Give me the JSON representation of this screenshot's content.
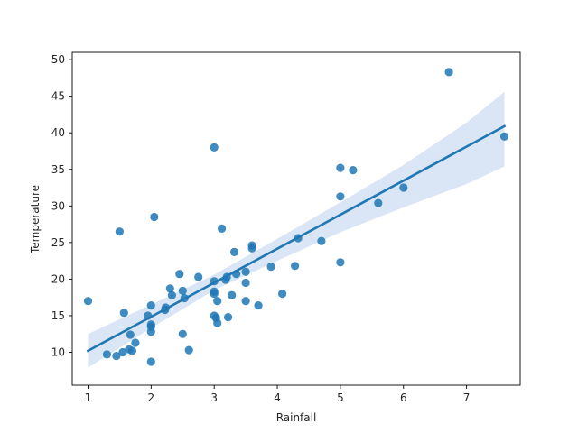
{
  "chart_data": {
    "type": "scatter",
    "xlabel": "Rainfall",
    "ylabel": "Temperature",
    "xlim": [
      0.75,
      7.85
    ],
    "ylim": [
      5.5,
      51
    ],
    "x_ticks": [
      1,
      2,
      3,
      4,
      5,
      6,
      7
    ],
    "y_ticks": [
      10,
      15,
      20,
      25,
      30,
      35,
      40,
      45,
      50
    ],
    "grid": false,
    "legend": "none",
    "colors": {
      "points": "#1f77b4",
      "line": "#1f77b4",
      "band": "#aec7e8"
    },
    "points": [
      {
        "x": 1.0,
        "y": 17.0
      },
      {
        "x": 1.3,
        "y": 9.7
      },
      {
        "x": 1.45,
        "y": 9.5
      },
      {
        "x": 1.5,
        "y": 26.5
      },
      {
        "x": 1.55,
        "y": 10.0
      },
      {
        "x": 1.57,
        "y": 15.4
      },
      {
        "x": 1.65,
        "y": 10.4
      },
      {
        "x": 1.67,
        "y": 12.4
      },
      {
        "x": 1.7,
        "y": 10.2
      },
      {
        "x": 1.75,
        "y": 11.3
      },
      {
        "x": 1.95,
        "y": 15.0
      },
      {
        "x": 2.0,
        "y": 8.7
      },
      {
        "x": 2.0,
        "y": 12.8
      },
      {
        "x": 2.0,
        "y": 13.5
      },
      {
        "x": 2.0,
        "y": 13.8
      },
      {
        "x": 2.0,
        "y": 16.4
      },
      {
        "x": 2.05,
        "y": 28.5
      },
      {
        "x": 2.22,
        "y": 15.8
      },
      {
        "x": 2.23,
        "y": 16.1
      },
      {
        "x": 2.3,
        "y": 18.7
      },
      {
        "x": 2.33,
        "y": 17.8
      },
      {
        "x": 2.45,
        "y": 20.7
      },
      {
        "x": 2.5,
        "y": 12.5
      },
      {
        "x": 2.5,
        "y": 18.4
      },
      {
        "x": 2.53,
        "y": 17.4
      },
      {
        "x": 2.6,
        "y": 10.3
      },
      {
        "x": 2.75,
        "y": 20.3
      },
      {
        "x": 3.0,
        "y": 38.0
      },
      {
        "x": 3.0,
        "y": 19.7
      },
      {
        "x": 3.0,
        "y": 18.3
      },
      {
        "x": 3.0,
        "y": 18.0
      },
      {
        "x": 3.0,
        "y": 15.0
      },
      {
        "x": 3.03,
        "y": 14.7
      },
      {
        "x": 3.05,
        "y": 14.0
      },
      {
        "x": 3.05,
        "y": 17.0
      },
      {
        "x": 3.12,
        "y": 26.9
      },
      {
        "x": 3.18,
        "y": 19.9
      },
      {
        "x": 3.2,
        "y": 20.3
      },
      {
        "x": 3.22,
        "y": 14.8
      },
      {
        "x": 3.28,
        "y": 17.8
      },
      {
        "x": 3.32,
        "y": 23.7
      },
      {
        "x": 3.35,
        "y": 20.7
      },
      {
        "x": 3.5,
        "y": 21.0
      },
      {
        "x": 3.5,
        "y": 19.5
      },
      {
        "x": 3.5,
        "y": 17.0
      },
      {
        "x": 3.6,
        "y": 24.2
      },
      {
        "x": 3.6,
        "y": 24.6
      },
      {
        "x": 3.7,
        "y": 16.4
      },
      {
        "x": 3.9,
        "y": 21.7
      },
      {
        "x": 4.08,
        "y": 18.0
      },
      {
        "x": 4.28,
        "y": 21.8
      },
      {
        "x": 4.33,
        "y": 25.6
      },
      {
        "x": 4.7,
        "y": 25.2
      },
      {
        "x": 5.0,
        "y": 35.2
      },
      {
        "x": 5.0,
        "y": 31.3
      },
      {
        "x": 5.0,
        "y": 22.3
      },
      {
        "x": 5.2,
        "y": 34.9
      },
      {
        "x": 5.6,
        "y": 30.4
      },
      {
        "x": 6.0,
        "y": 32.5
      },
      {
        "x": 6.72,
        "y": 48.3
      },
      {
        "x": 7.6,
        "y": 39.5
      }
    ],
    "regression": {
      "x": [
        1.0,
        7.6
      ],
      "y": [
        10.2,
        40.9
      ]
    },
    "confidence_band": {
      "x": [
        1.0,
        2.0,
        3.0,
        4.0,
        5.0,
        6.0,
        7.0,
        7.6
      ],
      "lower": [
        7.9,
        13.3,
        18.5,
        22.5,
        26.4,
        29.8,
        33.0,
        35.4
      ],
      "upper": [
        12.5,
        16.5,
        20.6,
        25.5,
        30.5,
        35.6,
        41.4,
        45.6
      ]
    }
  }
}
